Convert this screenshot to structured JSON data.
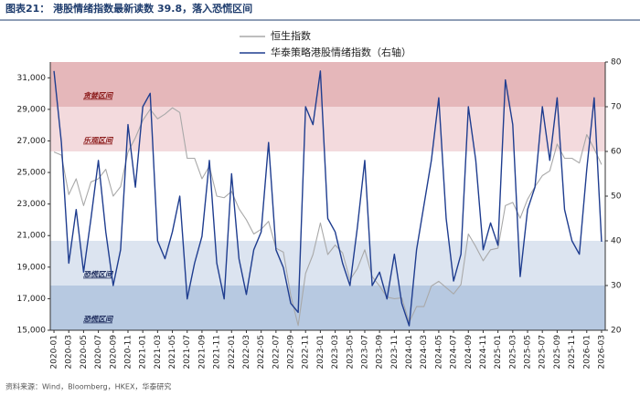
{
  "chart_data": {
    "type": "line",
    "title": "图表21： 港股情绪指数最新读数 39.8，落入恐慌区间",
    "source": "资料来源：Wind，Bloomberg，HKEX，华泰研究",
    "legend": "top",
    "categories": [
      "2020-01",
      null,
      "2020-03",
      null,
      "2020-05",
      null,
      "2020-07",
      null,
      "2020-09",
      null,
      "2020-11",
      null,
      "2021-01",
      null,
      "2021-03",
      null,
      "2021-05",
      null,
      "2021-07",
      null,
      "2021-09",
      null,
      "2021-11",
      null,
      "2022-01",
      null,
      "2022-03",
      null,
      "2022-05",
      null,
      "2022-07",
      null,
      "2022-09",
      null,
      "2022-11",
      null,
      "2023-01",
      null,
      "2023-03",
      null,
      "2023-05",
      null,
      "2023-07",
      null,
      "2023-09",
      null,
      "2023-11",
      null,
      "2024-01",
      null,
      "2024-03",
      null,
      "2024-05",
      null,
      "2024-07",
      null,
      "2024-09",
      null,
      "2024-11",
      null,
      "2025-01",
      null,
      "2025-03",
      null,
      "2025-05",
      null,
      "2025-07",
      null,
      "2025-09",
      null,
      "2025-11",
      null,
      "2026-01",
      null,
      "2026-03"
    ],
    "series": [
      {
        "name": "恒生指数",
        "color": "#a9a9a9",
        "values": [
          26300,
          26100,
          23600,
          24600,
          22900,
          24400,
          24600,
          25200,
          23500,
          24100,
          26300,
          27200,
          28300,
          29000,
          28400,
          28700,
          29100,
          28800,
          25900,
          25900,
          24600,
          25400,
          23500,
          23400,
          23800,
          22700,
          22000,
          21100,
          21400,
          21900,
          20200,
          19950,
          17200,
          15300,
          18600,
          19800,
          21800,
          19800,
          20400,
          19900,
          18200,
          18900,
          20100,
          18400,
          17800,
          17100,
          17000,
          17050,
          15500,
          16500,
          16500,
          17800,
          18100,
          17700,
          17300,
          17900,
          21100,
          20300,
          19400,
          20100,
          20200,
          22900,
          23100,
          22100,
          23300,
          24100,
          24800,
          25100,
          26800,
          25900,
          25900,
          25600,
          27400,
          26500,
          25500
        ]
      },
      {
        "name": "华泰策略港股情绪指数（右轴）",
        "color": "#1f3d8f",
        "axis": "y2",
        "values": [
          78,
          62,
          35,
          47,
          33,
          45,
          58,
          42,
          30,
          38,
          66,
          52,
          70,
          73,
          40,
          36,
          42,
          50,
          27,
          35,
          41,
          58,
          35,
          27,
          55,
          36,
          28,
          38,
          42,
          62,
          38,
          34,
          26,
          24,
          70,
          66,
          78,
          45,
          42,
          35,
          30,
          43,
          58,
          30,
          33,
          27,
          37,
          26,
          21,
          38,
          48,
          58,
          72,
          45,
          31,
          37,
          70,
          58,
          38,
          44,
          39,
          76,
          66,
          32,
          47,
          52,
          70,
          58,
          72,
          47,
          40,
          37,
          56,
          72,
          39.8
        ]
      }
    ],
    "ylim": [
      15000,
      32000
    ],
    "yticks": [
      {
        "value": 15000,
        "label": "15,000"
      },
      {
        "value": 17000,
        "label": "17,000"
      },
      {
        "value": 19000,
        "label": "19,000"
      },
      {
        "value": 21000,
        "label": "21,000"
      },
      {
        "value": 23000,
        "label": "23,000"
      },
      {
        "value": 25000,
        "label": "25,000"
      },
      {
        "value": 27000,
        "label": "27,000"
      },
      {
        "value": 29000,
        "label": "29,000"
      },
      {
        "value": 31000,
        "label": "31,000"
      }
    ],
    "y2lim": [
      20,
      80
    ],
    "y2ticks": [
      20,
      30,
      40,
      50,
      60,
      70,
      80
    ],
    "bands": [
      {
        "label": "贪婪区间",
        "range": [
          70,
          80
        ],
        "color": "#e5b7ba"
      },
      {
        "label": "乐观区间",
        "range": [
          60,
          70
        ],
        "color": "#f3dadd"
      },
      {
        "label": "恐慌区间",
        "range": [
          30,
          40
        ],
        "color": "#dce4f0"
      },
      {
        "label": "恐慌区间",
        "range": [
          20,
          30
        ],
        "color": "#b7c9e1"
      }
    ]
  }
}
